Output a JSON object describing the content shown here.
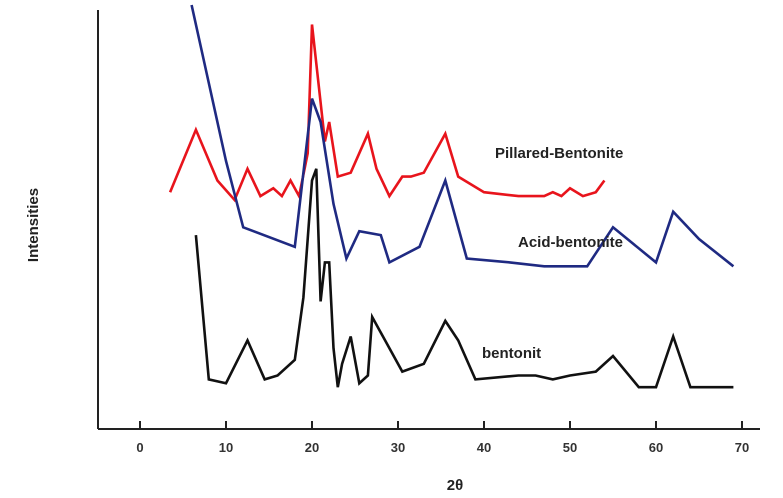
{
  "chart_data": {
    "type": "line",
    "xlabel": "2θ",
    "ylabel": "Intensities",
    "xlim": [
      -5,
      75
    ],
    "ylim": [
      0,
      100
    ],
    "xticks": [
      0,
      10,
      20,
      30,
      40,
      50,
      60,
      70
    ],
    "grid": false,
    "legend": "none",
    "series": [
      {
        "name": "Pillared-Bentonite",
        "color": "#e8141c",
        "x": [
          3.5,
          6.5,
          9,
          11,
          12.5,
          14,
          15.5,
          16.5,
          17.5,
          18.5,
          19.5,
          20,
          20.5,
          21.5,
          22,
          23,
          24.5,
          26.5,
          27.5,
          29,
          30.5,
          31.5,
          33,
          35.5,
          37,
          40,
          44,
          47,
          48,
          49,
          50,
          51.5,
          53,
          54
        ],
        "values": [
          52,
          68,
          55,
          50,
          58,
          51,
          53,
          51,
          55,
          51,
          62,
          95,
          85,
          65,
          70,
          56,
          57,
          67,
          58,
          51,
          56,
          56,
          57,
          67,
          56,
          52,
          51,
          51,
          52,
          51,
          53,
          51,
          52,
          55
        ]
      },
      {
        "name": "Acid-bentonite",
        "color": "#1f2a82",
        "x": [
          6,
          8,
          10,
          12,
          18,
          20,
          21,
          22.5,
          24,
          25.5,
          28,
          29,
          32.5,
          35.5,
          38,
          43,
          47,
          52,
          55,
          60,
          62,
          65,
          69
        ],
        "values": [
          100,
          80,
          60,
          43,
          38,
          76,
          70,
          49,
          35,
          42,
          41,
          34,
          38,
          55,
          35,
          34,
          33,
          33,
          43,
          34,
          47,
          40,
          33
        ]
      },
      {
        "name": "bentonit",
        "color": "#111111",
        "x": [
          6.5,
          8,
          10,
          12.5,
          14.5,
          16,
          18,
          19,
          20,
          20.5,
          21,
          21.5,
          22,
          22.5,
          23,
          23.5,
          24.5,
          25.5,
          26.5,
          27,
          30.5,
          33,
          35.5,
          37,
          39,
          44,
          46,
          48,
          50,
          53,
          55,
          58,
          60,
          62,
          64,
          69
        ],
        "values": [
          41,
          4,
          3,
          14,
          4,
          5,
          9,
          25,
          55,
          58,
          24,
          34,
          34,
          12,
          2,
          8,
          15,
          3,
          5,
          20,
          6,
          8,
          19,
          14,
          4,
          5,
          5,
          4,
          5,
          6,
          10,
          2,
          2,
          15,
          2,
          2
        ]
      }
    ]
  }
}
